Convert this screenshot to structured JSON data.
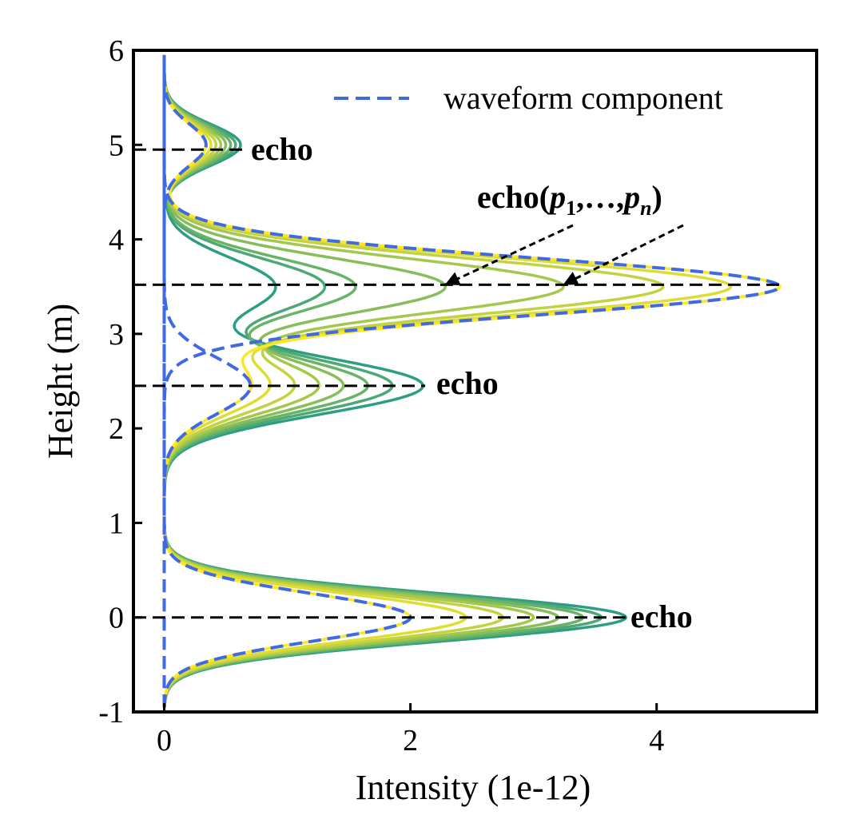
{
  "chart_data": {
    "type": "line",
    "xlabel": "Intensity (1e-12)",
    "ylabel": "Height (m)",
    "xlim": [
      -0.25,
      5.3
    ],
    "ylim": [
      -1,
      6
    ],
    "xticks": [
      0,
      2,
      4
    ],
    "yticks": [
      -1,
      0,
      1,
      2,
      3,
      4,
      5,
      6
    ],
    "xtick_labels": [
      "0",
      "2",
      "4"
    ],
    "ytick_labels": [
      "-1",
      "0",
      "1",
      "2",
      "3",
      "4",
      "5",
      "6"
    ],
    "grid": false,
    "legend": {
      "position": "top-right",
      "entries": [
        {
          "label": "waveform component",
          "style": "dashed",
          "color": "#4169e1"
        }
      ]
    },
    "colors": {
      "component": "#4169e1",
      "reference": "#000000",
      "curve_low": "#2e9e82",
      "curve_high": "#fde725"
    },
    "echoes": [
      {
        "height": 5.0,
        "peak": 0.62,
        "sigma": 0.22,
        "label": "echo"
      },
      {
        "height": 3.5,
        "peak": 5.0,
        "sigma": 0.3,
        "label": ""
      },
      {
        "height": 2.45,
        "peak": 2.1,
        "sigma": 0.3,
        "label": "echo"
      },
      {
        "height": 0.0,
        "peak": 3.75,
        "sigma": 0.25,
        "label": "echo"
      }
    ],
    "reference_lines": [
      4.95,
      3.52,
      2.45,
      0.0
    ],
    "annotation": {
      "text": "echo(p1,…,pn)",
      "parts": {
        "prefix": "echo(",
        "p": "p",
        "sub1": "1",
        "mid": ",…,",
        "subn": "n",
        "suffix": ")"
      },
      "arrow_targets": [
        {
          "x": 2.28,
          "y": 3.52
        },
        {
          "x": 3.24,
          "y": 3.52
        }
      ]
    },
    "series": [
      {
        "values": [
          0.62,
          0.9,
          2.1,
          3.75
        ]
      },
      {
        "values": [
          0.58,
          1.3,
          1.85,
          3.55
        ]
      },
      {
        "values": [
          0.54,
          1.55,
          1.65,
          3.4
        ]
      },
      {
        "values": [
          0.5,
          2.28,
          1.45,
          3.2
        ]
      },
      {
        "values": [
          0.46,
          3.24,
          1.25,
          3.0
        ]
      },
      {
        "values": [
          0.42,
          4.05,
          1.05,
          2.75
        ]
      },
      {
        "values": [
          0.38,
          4.6,
          0.85,
          2.45
        ]
      },
      {
        "values": [
          0.34,
          5.0,
          0.7,
          2.0
        ]
      }
    ]
  }
}
